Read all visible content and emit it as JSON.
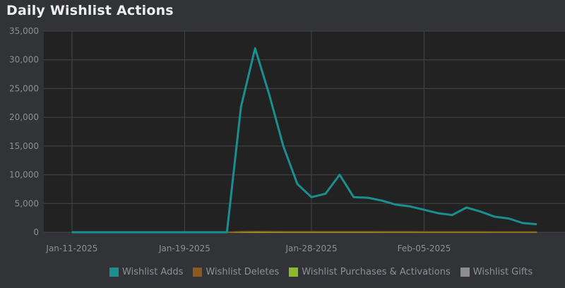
{
  "title": "Daily Wishlist Actions",
  "colors": {
    "background": "#323336",
    "plot_background": "#222223",
    "grid": "#45464a",
    "adds": "#1b8e8f",
    "deletes": "#8a5a1f",
    "purchases": "#8fb82b",
    "gifts": "#8d8d8d"
  },
  "chart_data": {
    "type": "line",
    "title": "Daily Wishlist Actions",
    "x": [
      "2025-01-11",
      "2025-01-12",
      "2025-01-13",
      "2025-01-14",
      "2025-01-15",
      "2025-01-16",
      "2025-01-17",
      "2025-01-18",
      "2025-01-19",
      "2025-01-20",
      "2025-01-21",
      "2025-01-22",
      "2025-01-23",
      "2025-01-24",
      "2025-01-25",
      "2025-01-26",
      "2025-01-27",
      "2025-01-28",
      "2025-01-29",
      "2025-01-30",
      "2025-01-31",
      "2025-02-01",
      "2025-02-02",
      "2025-02-03",
      "2025-02-04",
      "2025-02-05",
      "2025-02-06",
      "2025-02-07",
      "2025-02-08",
      "2025-02-09",
      "2025-02-10",
      "2025-02-11",
      "2025-02-12",
      "2025-02-13"
    ],
    "x_ticks": [
      "Jan-11-2025",
      "Jan-19-2025",
      "Jan-28-2025",
      "Feb-05-2025"
    ],
    "x_tick_dates": [
      "2025-01-11",
      "2025-01-19",
      "2025-01-28",
      "2025-02-05"
    ],
    "y_ticks": [
      "0",
      "5,000",
      "10,000",
      "15,000",
      "20,000",
      "25,000",
      "30,000",
      "35,000"
    ],
    "ylim": [
      0,
      35000
    ],
    "grid": true,
    "legend_position": "bottom-right",
    "series": [
      {
        "name": "Wishlist Adds",
        "values": [
          0,
          0,
          0,
          0,
          0,
          0,
          0,
          0,
          0,
          0,
          0,
          0,
          21800,
          32000,
          24000,
          15000,
          8400,
          6100,
          6700,
          10000,
          6100,
          6000,
          5500,
          4800,
          4500,
          3900,
          3300,
          3000,
          4300,
          3600,
          2700,
          2400,
          1600,
          1400
        ]
      },
      {
        "name": "Wishlist Deletes",
        "values": [
          0,
          0,
          0,
          0,
          0,
          0,
          0,
          0,
          0,
          0,
          0,
          0,
          80,
          120,
          110,
          100,
          90,
          80,
          80,
          90,
          80,
          80,
          70,
          70,
          70,
          60,
          60,
          60,
          60,
          60,
          50,
          50,
          50,
          50
        ]
      },
      {
        "name": "Wishlist Purchases & Activations",
        "values": [
          0,
          0,
          0,
          0,
          0,
          0,
          0,
          0,
          0,
          0,
          0,
          0,
          0,
          0,
          0,
          0,
          0,
          0,
          0,
          0,
          0,
          0,
          0,
          0,
          0,
          0,
          0,
          0,
          0,
          0,
          0,
          0,
          0,
          0
        ]
      },
      {
        "name": "Wishlist Gifts",
        "values": [
          0,
          0,
          0,
          0,
          0,
          0,
          0,
          0,
          0,
          0,
          0,
          0,
          0,
          0,
          0,
          0,
          0,
          0,
          0,
          0,
          0,
          0,
          0,
          0,
          0,
          0,
          0,
          0,
          0,
          0,
          0,
          0,
          0,
          0
        ]
      }
    ]
  }
}
